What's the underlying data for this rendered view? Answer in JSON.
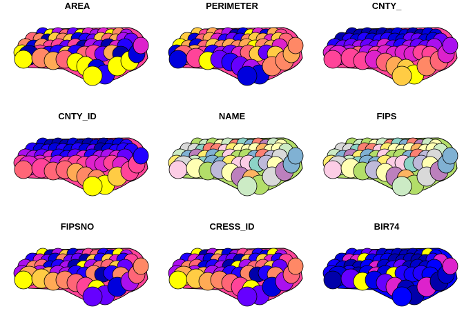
{
  "figure": {
    "panels": [
      {
        "title": "AREA",
        "palette": [
          "#0000AA",
          "#0000DD",
          "#2200FF",
          "#6600FF",
          "#AA10EE",
          "#DD22CC",
          "#FF4499",
          "#FF6677",
          "#FF8866",
          "#FFAA55",
          "#FFCC44",
          "#FFFF00"
        ],
        "fill_seed": 3
      },
      {
        "title": "PERIMETER",
        "palette": [
          "#0000AA",
          "#0000DD",
          "#2200FF",
          "#6600FF",
          "#AA10EE",
          "#DD22CC",
          "#FF4499",
          "#FF6677",
          "#FF8866",
          "#FFAA55",
          "#FFCC44",
          "#FFFF00"
        ],
        "fill_seed": 5
      },
      {
        "title": "CNTY_",
        "palette": [
          "#0000AA",
          "#0000DD",
          "#2200FF",
          "#6600FF",
          "#AA10EE",
          "#DD22CC",
          "#FF4499",
          "#FF6677",
          "#FF8866",
          "#FFAA55",
          "#FFCC44",
          "#FFFF00"
        ],
        "fill_seed": 7,
        "gradient": true
      },
      {
        "title": "CNTY_ID",
        "palette": [
          "#0000AA",
          "#0000DD",
          "#2200FF",
          "#6600FF",
          "#AA10EE",
          "#DD22CC",
          "#FF4499",
          "#FF6677",
          "#FF8866",
          "#FFAA55",
          "#FFCC44",
          "#FFFF00"
        ],
        "fill_seed": 11,
        "gradient": true
      },
      {
        "title": "NAME",
        "palette": [
          "#8DD3C7",
          "#FFFFB3",
          "#BEBADA",
          "#FB8072",
          "#80B1D3",
          "#FDB462",
          "#B3DE69",
          "#FCCDE5",
          "#D9D9D9",
          "#BC80BD",
          "#CCEBC5",
          "#FFED6F"
        ],
        "fill_seed": 13
      },
      {
        "title": "FIPS",
        "palette": [
          "#8DD3C7",
          "#FFFFB3",
          "#BEBADA",
          "#FB8072",
          "#80B1D3",
          "#FDB462",
          "#B3DE69",
          "#FCCDE5",
          "#D9D9D9",
          "#BC80BD",
          "#CCEBC5",
          "#FFED6F"
        ],
        "fill_seed": 13
      },
      {
        "title": "FIPSNO",
        "palette": [
          "#0000AA",
          "#0000DD",
          "#2200FF",
          "#6600FF",
          "#AA10EE",
          "#DD22CC",
          "#FF4499",
          "#FF6677",
          "#FF8866",
          "#FFAA55",
          "#FFCC44",
          "#FFFF00"
        ],
        "fill_seed": 17
      },
      {
        "title": "CRESS_ID",
        "palette": [
          "#0000AA",
          "#0000DD",
          "#2200FF",
          "#6600FF",
          "#AA10EE",
          "#DD22CC",
          "#FF4499",
          "#FF6677",
          "#FF8866",
          "#FFAA55",
          "#FFCC44",
          "#FFFF00"
        ],
        "fill_seed": 17
      },
      {
        "title": "BIR74",
        "palette": [
          "#0000AA",
          "#0000AA",
          "#0000BB",
          "#0000CC",
          "#0000DD",
          "#0000EE",
          "#0000FF",
          "#1100FF",
          "#2200FF",
          "#6600FF",
          "#DD22CC",
          "#FFFF00"
        ],
        "fill_seed": 19
      }
    ],
    "stroke_color": "#000000"
  }
}
